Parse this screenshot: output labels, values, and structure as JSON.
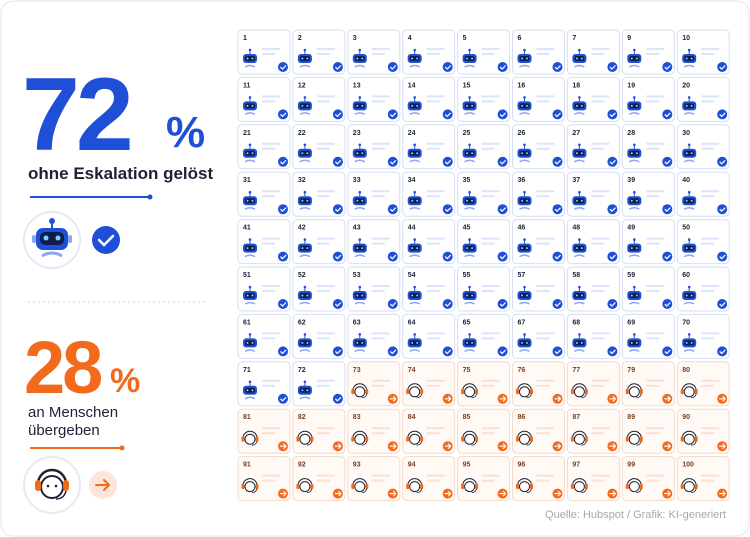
{
  "stats": {
    "resolved": {
      "value": "72",
      "unit": "%",
      "label": "ohne Eskalation gelöst"
    },
    "escalated": {
      "value": "28",
      "unit": "%",
      "label_lines": [
        "an Menschen",
        "übergeben"
      ]
    }
  },
  "cards": [
    {
      "number": 1,
      "handled_by": "bot"
    },
    {
      "number": 2,
      "handled_by": "bot"
    },
    {
      "number": 3,
      "handled_by": "bot"
    },
    {
      "number": 4,
      "handled_by": "bot"
    },
    {
      "number": 5,
      "handled_by": "bot"
    },
    {
      "number": 6,
      "handled_by": "bot"
    },
    {
      "number": 7,
      "handled_by": "bot"
    },
    {
      "number": 9,
      "handled_by": "bot"
    },
    {
      "number": 10,
      "handled_by": "bot"
    },
    {
      "number": 11,
      "handled_by": "bot"
    },
    {
      "number": 12,
      "handled_by": "bot"
    },
    {
      "number": 13,
      "handled_by": "bot"
    },
    {
      "number": 14,
      "handled_by": "bot"
    },
    {
      "number": 15,
      "handled_by": "bot"
    },
    {
      "number": 16,
      "handled_by": "bot"
    },
    {
      "number": 18,
      "handled_by": "bot"
    },
    {
      "number": 19,
      "handled_by": "bot"
    },
    {
      "number": 20,
      "handled_by": "bot"
    },
    {
      "number": 21,
      "handled_by": "bot"
    },
    {
      "number": 22,
      "handled_by": "bot"
    },
    {
      "number": 23,
      "handled_by": "bot"
    },
    {
      "number": 24,
      "handled_by": "bot"
    },
    {
      "number": 25,
      "handled_by": "bot"
    },
    {
      "number": 26,
      "handled_by": "bot"
    },
    {
      "number": 27,
      "handled_by": "bot"
    },
    {
      "number": 28,
      "handled_by": "bot"
    },
    {
      "number": 30,
      "handled_by": "bot"
    },
    {
      "number": 31,
      "handled_by": "bot"
    },
    {
      "number": 32,
      "handled_by": "bot"
    },
    {
      "number": 33,
      "handled_by": "bot"
    },
    {
      "number": 34,
      "handled_by": "bot"
    },
    {
      "number": 35,
      "handled_by": "bot"
    },
    {
      "number": 36,
      "handled_by": "bot"
    },
    {
      "number": 37,
      "handled_by": "bot"
    },
    {
      "number": 39,
      "handled_by": "bot"
    },
    {
      "number": 40,
      "handled_by": "bot"
    },
    {
      "number": 41,
      "handled_by": "bot"
    },
    {
      "number": 42,
      "handled_by": "bot"
    },
    {
      "number": 43,
      "handled_by": "bot"
    },
    {
      "number": 44,
      "handled_by": "bot"
    },
    {
      "number": 45,
      "handled_by": "bot"
    },
    {
      "number": 46,
      "handled_by": "bot"
    },
    {
      "number": 48,
      "handled_by": "bot"
    },
    {
      "number": 49,
      "handled_by": "bot"
    },
    {
      "number": 50,
      "handled_by": "bot"
    },
    {
      "number": 51,
      "handled_by": "bot"
    },
    {
      "number": 52,
      "handled_by": "bot"
    },
    {
      "number": 53,
      "handled_by": "bot"
    },
    {
      "number": 54,
      "handled_by": "bot"
    },
    {
      "number": 55,
      "handled_by": "bot"
    },
    {
      "number": 57,
      "handled_by": "bot"
    },
    {
      "number": 58,
      "handled_by": "bot"
    },
    {
      "number": 59,
      "handled_by": "bot"
    },
    {
      "number": 60,
      "handled_by": "bot"
    },
    {
      "number": 61,
      "handled_by": "bot"
    },
    {
      "number": 62,
      "handled_by": "bot"
    },
    {
      "number": 63,
      "handled_by": "bot"
    },
    {
      "number": 64,
      "handled_by": "bot"
    },
    {
      "number": 65,
      "handled_by": "bot"
    },
    {
      "number": 67,
      "handled_by": "bot"
    },
    {
      "number": 68,
      "handled_by": "bot"
    },
    {
      "number": 69,
      "handled_by": "bot"
    },
    {
      "number": 70,
      "handled_by": "bot"
    },
    {
      "number": 71,
      "handled_by": "bot"
    },
    {
      "number": 72,
      "handled_by": "bot"
    },
    {
      "number": 73,
      "handled_by": "human"
    },
    {
      "number": 74,
      "handled_by": "human"
    },
    {
      "number": 75,
      "handled_by": "human"
    },
    {
      "number": 76,
      "handled_by": "human"
    },
    {
      "number": 77,
      "handled_by": "human"
    },
    {
      "number": 79,
      "handled_by": "human"
    },
    {
      "number": 80,
      "handled_by": "human"
    },
    {
      "number": 81,
      "handled_by": "human"
    },
    {
      "number": 82,
      "handled_by": "human"
    },
    {
      "number": 83,
      "handled_by": "human"
    },
    {
      "number": 84,
      "handled_by": "human"
    },
    {
      "number": 85,
      "handled_by": "human"
    },
    {
      "number": 86,
      "handled_by": "human"
    },
    {
      "number": 87,
      "handled_by": "human"
    },
    {
      "number": 89,
      "handled_by": "human"
    },
    {
      "number": 90,
      "handled_by": "human"
    },
    {
      "number": 91,
      "handled_by": "human"
    },
    {
      "number": 92,
      "handled_by": "human"
    },
    {
      "number": 93,
      "handled_by": "human"
    },
    {
      "number": 94,
      "handled_by": "human"
    },
    {
      "number": 95,
      "handled_by": "human"
    },
    {
      "number": 96,
      "handled_by": "human"
    },
    {
      "number": 97,
      "handled_by": "human"
    },
    {
      "number": 99,
      "handled_by": "human"
    },
    {
      "number": 100,
      "handled_by": "human"
    }
  ],
  "source": "Quelle: Hubspot / Grafik: KI-generiert"
}
